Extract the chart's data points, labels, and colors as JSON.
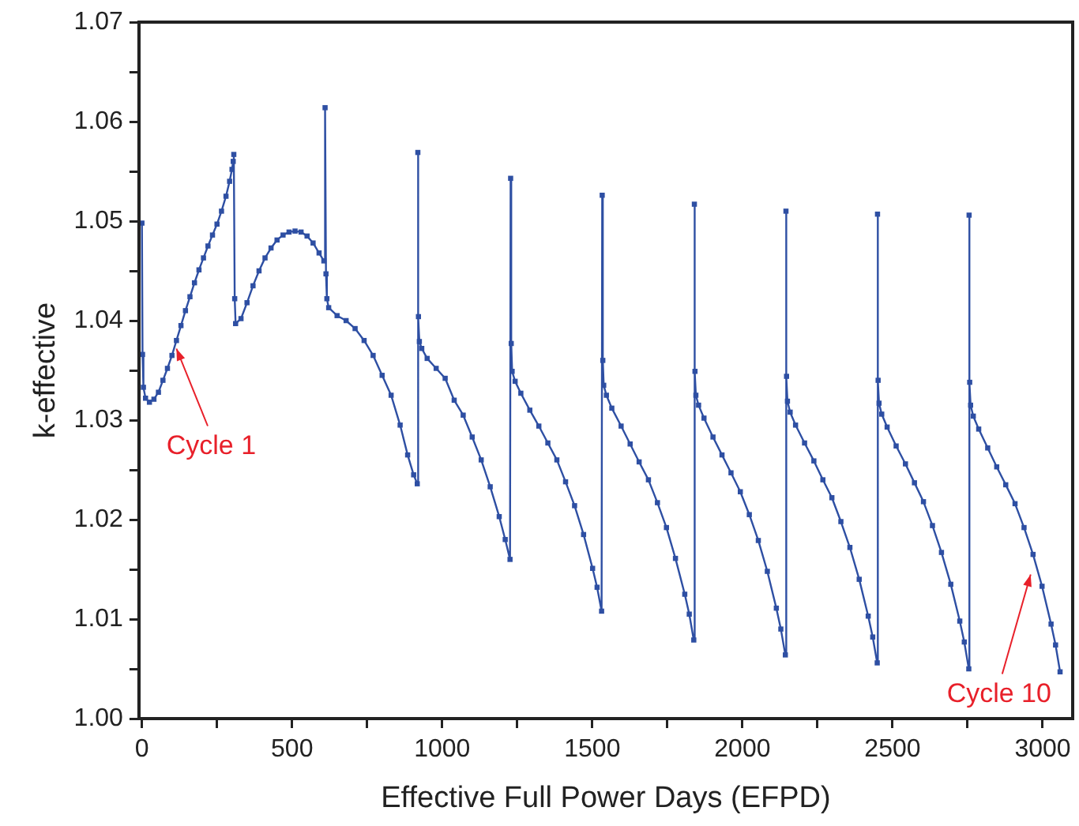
{
  "chart_data": {
    "type": "line",
    "xlabel": "Effective Full Power Days (EFPD)",
    "ylabel": "k-effective",
    "x": [
      0,
      2,
      5,
      12,
      25,
      40,
      55,
      70,
      85,
      100,
      115,
      130,
      145,
      160,
      175,
      190,
      205,
      220,
      235,
      250,
      265,
      280,
      292,
      300,
      304,
      306,
      309,
      312,
      330,
      350,
      370,
      390,
      410,
      430,
      450,
      470,
      490,
      510,
      530,
      550,
      570,
      590,
      606,
      610,
      613,
      616,
      622,
      650,
      680,
      710,
      740,
      770,
      800,
      830,
      860,
      885,
      905,
      917,
      919,
      921,
      924,
      932,
      950,
      980,
      1010,
      1040,
      1070,
      1100,
      1130,
      1160,
      1190,
      1210,
      1226,
      1228,
      1230,
      1233,
      1243,
      1262,
      1292,
      1322,
      1352,
      1382,
      1411,
      1441,
      1471,
      1501,
      1516,
      1531,
      1533,
      1535,
      1538,
      1547,
      1565,
      1596,
      1626,
      1656,
      1687,
      1717,
      1747,
      1777,
      1808,
      1823,
      1838,
      1840,
      1842,
      1845,
      1854,
      1872,
      1902,
      1932,
      1962,
      1993,
      2023,
      2053,
      2083,
      2113,
      2128,
      2143,
      2145,
      2147,
      2150,
      2159,
      2177,
      2207,
      2238,
      2268,
      2298,
      2328,
      2358,
      2389,
      2419,
      2434,
      2449,
      2450,
      2452,
      2455,
      2464,
      2482,
      2512,
      2543,
      2573,
      2603,
      2633,
      2663,
      2694,
      2724,
      2739,
      2754,
      2755,
      2757,
      2760,
      2769,
      2787,
      2817,
      2847,
      2877,
      2908,
      2938,
      2968,
      2998,
      3028,
      3043,
      3058
    ],
    "values": [
      1.0498,
      1.0366,
      1.0333,
      1.0322,
      1.0318,
      1.0321,
      1.0328,
      1.034,
      1.0352,
      1.0365,
      1.038,
      1.0395,
      1.041,
      1.0424,
      1.0438,
      1.0451,
      1.0463,
      1.0475,
      1.0486,
      1.0497,
      1.051,
      1.0525,
      1.054,
      1.0552,
      1.056,
      1.0567,
      1.0422,
      1.0397,
      1.0402,
      1.0418,
      1.0435,
      1.045,
      1.0463,
      1.0473,
      1.0481,
      1.0486,
      1.0489,
      1.049,
      1.0489,
      1.0485,
      1.0478,
      1.0468,
      1.046,
      1.0614,
      1.0447,
      1.0422,
      1.0413,
      1.0405,
      1.04,
      1.0392,
      1.038,
      1.0365,
      1.0345,
      1.0325,
      1.0295,
      1.0265,
      1.0245,
      1.0236,
      1.0569,
      1.0404,
      1.0379,
      1.0372,
      1.0362,
      1.0352,
      1.0342,
      1.032,
      1.0305,
      1.0283,
      1.026,
      1.0233,
      1.0203,
      1.018,
      1.016,
      1.0543,
      1.0377,
      1.0349,
      1.0339,
      1.0327,
      1.031,
      1.0294,
      1.0277,
      1.026,
      1.0238,
      1.0214,
      1.0185,
      1.0151,
      1.0132,
      1.0108,
      1.0526,
      1.036,
      1.0335,
      1.0325,
      1.0312,
      1.0294,
      1.0276,
      1.0258,
      1.024,
      1.0217,
      1.0192,
      1.0161,
      1.0125,
      1.0105,
      1.0079,
      1.0517,
      1.0349,
      1.0325,
      1.0315,
      1.0302,
      1.0283,
      1.0265,
      1.0247,
      1.0228,
      1.0205,
      1.0179,
      1.0148,
      1.0111,
      1.009,
      1.0064,
      1.051,
      1.0344,
      1.0319,
      1.0308,
      1.0295,
      1.0277,
      1.0259,
      1.024,
      1.0222,
      1.0198,
      1.0172,
      1.014,
      1.0103,
      1.0082,
      1.0056,
      1.0507,
      1.034,
      1.0317,
      1.0306,
      1.0293,
      1.0274,
      1.0256,
      1.0237,
      1.0218,
      1.0194,
      1.0167,
      1.0135,
      1.0098,
      1.0077,
      1.005,
      1.0506,
      1.0338,
      1.0315,
      1.0304,
      1.0291,
      1.0272,
      1.0253,
      1.0235,
      1.0216,
      1.0192,
      1.0165,
      1.0133,
      1.0095,
      1.0074,
      1.0047
    ],
    "color": "#2e4fa3",
    "marker": "square",
    "line_style": "solid",
    "xlim": [
      -10,
      3100
    ],
    "ylim": [
      1.0,
      1.07
    ],
    "xticks": [
      0,
      {
        "value": 250,
        "label": null
      },
      500,
      {
        "value": 750,
        "label": null
      },
      1000,
      {
        "value": 1250,
        "label": null
      },
      1500,
      {
        "value": 1750,
        "label": null
      },
      2000,
      {
        "value": 2250,
        "label": null
      },
      2500,
      {
        "value": 2750,
        "label": null
      },
      3000
    ],
    "yticks": [
      {
        "value": 1.0,
        "label": "1.00"
      },
      {
        "value": 1.005,
        "label": null
      },
      {
        "value": 1.01,
        "label": "1.01"
      },
      {
        "value": 1.015,
        "label": null
      },
      {
        "value": 1.02,
        "label": "1.02"
      },
      {
        "value": 1.025,
        "label": null
      },
      {
        "value": 1.03,
        "label": "1.03"
      },
      {
        "value": 1.035,
        "label": null
      },
      {
        "value": 1.04,
        "label": "1.04"
      },
      {
        "value": 1.045,
        "label": null
      },
      {
        "value": 1.05,
        "label": "1.05"
      },
      {
        "value": 1.055,
        "label": null
      },
      {
        "value": 1.06,
        "label": "1.06"
      },
      {
        "value": 1.065,
        "label": null
      },
      {
        "value": 1.07,
        "label": "1.07"
      }
    ],
    "annotations": [
      {
        "text": "Cycle 1",
        "x": 115,
        "y": 1.0375
      },
      {
        "text": "Cycle 10",
        "x": 2960,
        "y": 1.0148
      }
    ]
  }
}
